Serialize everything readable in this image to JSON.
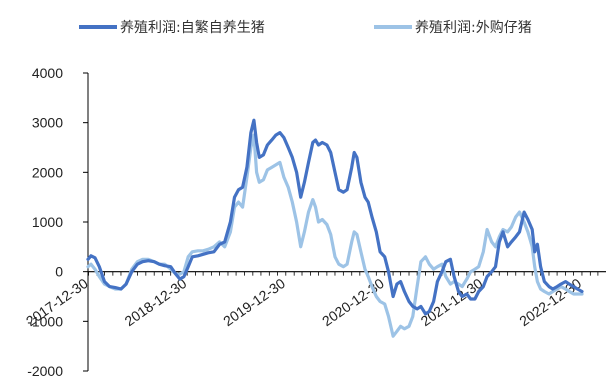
{
  "chart_data": {
    "type": "line",
    "title": "",
    "xlabel": "",
    "ylabel": "",
    "ylim": [
      -2000,
      4000
    ],
    "yticks": [
      -2000,
      -1000,
      0,
      1000,
      2000,
      3000,
      4000
    ],
    "ytick_labels": [
      "-2000",
      "-1000",
      "0",
      "1000",
      "2000",
      "3000",
      "4000"
    ],
    "xlim": [
      "2017-12-30",
      "2023-03-31"
    ],
    "xticks": [
      "2017-12-30",
      "2018-12-30",
      "2019-12-30",
      "2020-12-30",
      "2021-12-30",
      "2022-12-30"
    ],
    "xtick_labels": [
      "2017-12-30",
      "2018-12-30",
      "2019-12-30",
      "2020-12-30",
      "2021-12-30",
      "2022-12-30"
    ],
    "grid": false,
    "legend_position": "top",
    "series": [
      {
        "name": "养殖利润:自繁自养生猪",
        "color": "#4472C4",
        "points": [
          [
            "2017-12-30",
            250
          ],
          [
            "2018-01-10",
            320
          ],
          [
            "2018-01-25",
            280
          ],
          [
            "2018-02-10",
            100
          ],
          [
            "2018-03-01",
            -200
          ],
          [
            "2018-03-20",
            -300
          ],
          [
            "2018-04-10",
            -320
          ],
          [
            "2018-05-01",
            -350
          ],
          [
            "2018-05-20",
            -250
          ],
          [
            "2018-06-10",
            0
          ],
          [
            "2018-07-01",
            150
          ],
          [
            "2018-07-20",
            200
          ],
          [
            "2018-08-10",
            220
          ],
          [
            "2018-09-01",
            200
          ],
          [
            "2018-09-20",
            150
          ],
          [
            "2018-10-10",
            120
          ],
          [
            "2018-11-01",
            100
          ],
          [
            "2018-11-20",
            -50
          ],
          [
            "2018-12-05",
            -150
          ],
          [
            "2018-12-20",
            -100
          ],
          [
            "2019-01-05",
            100
          ],
          [
            "2019-01-20",
            300
          ],
          [
            "2019-02-10",
            320
          ],
          [
            "2019-03-01",
            350
          ],
          [
            "2019-03-20",
            380
          ],
          [
            "2019-04-10",
            400
          ],
          [
            "2019-05-01",
            550
          ],
          [
            "2019-05-20",
            600
          ],
          [
            "2019-06-10",
            1000
          ],
          [
            "2019-06-25",
            1500
          ],
          [
            "2019-07-10",
            1650
          ],
          [
            "2019-07-25",
            1700
          ],
          [
            "2019-08-10",
            2100
          ],
          [
            "2019-08-25",
            2800
          ],
          [
            "2019-09-05",
            3050
          ],
          [
            "2019-09-15",
            2600
          ],
          [
            "2019-09-25",
            2300
          ],
          [
            "2019-10-10",
            2350
          ],
          [
            "2019-10-25",
            2550
          ],
          [
            "2019-11-10",
            2650
          ],
          [
            "2019-11-25",
            2750
          ],
          [
            "2019-12-10",
            2800
          ],
          [
            "2019-12-25",
            2700
          ],
          [
            "2020-01-10",
            2500
          ],
          [
            "2020-01-25",
            2300
          ],
          [
            "2020-02-10",
            2000
          ],
          [
            "2020-02-25",
            1500
          ],
          [
            "2020-03-10",
            1800
          ],
          [
            "2020-03-25",
            2200
          ],
          [
            "2020-04-10",
            2600
          ],
          [
            "2020-04-20",
            2650
          ],
          [
            "2020-05-01",
            2550
          ],
          [
            "2020-05-15",
            2600
          ],
          [
            "2020-06-01",
            2550
          ],
          [
            "2020-06-15",
            2400
          ],
          [
            "2020-07-01",
            2000
          ],
          [
            "2020-07-15",
            1650
          ],
          [
            "2020-08-01",
            1600
          ],
          [
            "2020-08-15",
            1650
          ],
          [
            "2020-09-01",
            2100
          ],
          [
            "2020-09-10",
            2400
          ],
          [
            "2020-09-20",
            2300
          ],
          [
            "2020-10-05",
            1800
          ],
          [
            "2020-10-20",
            1500
          ],
          [
            "2020-11-01",
            1400
          ],
          [
            "2020-11-15",
            1100
          ],
          [
            "2020-12-01",
            800
          ],
          [
            "2020-12-15",
            400
          ],
          [
            "2021-01-01",
            300
          ],
          [
            "2021-01-15",
            0
          ],
          [
            "2021-02-01",
            -500
          ],
          [
            "2021-02-15",
            -250
          ],
          [
            "2021-03-01",
            -200
          ],
          [
            "2021-03-15",
            -400
          ],
          [
            "2021-04-01",
            -600
          ],
          [
            "2021-04-15",
            -700
          ],
          [
            "2021-05-01",
            -750
          ],
          [
            "2021-05-15",
            -700
          ],
          [
            "2021-06-01",
            -850
          ],
          [
            "2021-06-15",
            -800
          ],
          [
            "2021-07-01",
            -600
          ],
          [
            "2021-07-15",
            -200
          ],
          [
            "2021-08-01",
            0
          ],
          [
            "2021-08-15",
            200
          ],
          [
            "2021-09-01",
            250
          ],
          [
            "2021-09-15",
            -100
          ],
          [
            "2021-10-01",
            -400
          ],
          [
            "2021-10-15",
            -500
          ],
          [
            "2021-11-01",
            -450
          ],
          [
            "2021-11-15",
            -550
          ],
          [
            "2021-12-01",
            -550
          ],
          [
            "2021-12-15",
            -400
          ],
          [
            "2022-01-01",
            -300
          ],
          [
            "2022-01-15",
            -100
          ],
          [
            "2022-02-01",
            0
          ],
          [
            "2022-02-15",
            100
          ],
          [
            "2022-03-01",
            600
          ],
          [
            "2022-03-15",
            800
          ],
          [
            "2022-04-01",
            500
          ],
          [
            "2022-04-15",
            600
          ],
          [
            "2022-05-01",
            700
          ],
          [
            "2022-05-15",
            800
          ],
          [
            "2022-06-01",
            1200
          ],
          [
            "2022-06-15",
            1050
          ],
          [
            "2022-07-01",
            850
          ],
          [
            "2022-07-10",
            400
          ],
          [
            "2022-07-20",
            550
          ],
          [
            "2022-08-01",
            100
          ],
          [
            "2022-08-15",
            -200
          ],
          [
            "2022-09-01",
            -300
          ],
          [
            "2022-09-15",
            -350
          ],
          [
            "2022-10-01",
            -300
          ],
          [
            "2022-10-15",
            -250
          ],
          [
            "2022-11-01",
            -200
          ],
          [
            "2022-11-15",
            -250
          ],
          [
            "2022-12-01",
            -300
          ],
          [
            "2022-12-15",
            -350
          ],
          [
            "2023-01-01",
            -400
          ]
        ]
      },
      {
        "name": "养殖利润:外购仔猪",
        "color": "#9DC3E6",
        "points": [
          [
            "2017-12-30",
            100
          ],
          [
            "2018-01-10",
            150
          ],
          [
            "2018-01-25",
            50
          ],
          [
            "2018-02-10",
            -100
          ],
          [
            "2018-03-01",
            -250
          ],
          [
            "2018-03-20",
            -300
          ],
          [
            "2018-04-10",
            -350
          ],
          [
            "2018-05-01",
            -350
          ],
          [
            "2018-05-20",
            -250
          ],
          [
            "2018-06-10",
            50
          ],
          [
            "2018-07-01",
            200
          ],
          [
            "2018-07-20",
            250
          ],
          [
            "2018-08-10",
            250
          ],
          [
            "2018-09-01",
            200
          ],
          [
            "2018-09-20",
            150
          ],
          [
            "2018-10-10",
            150
          ],
          [
            "2018-11-01",
            50
          ],
          [
            "2018-11-20",
            -50
          ],
          [
            "2018-12-05",
            -50
          ],
          [
            "2018-12-20",
            0
          ],
          [
            "2019-01-05",
            300
          ],
          [
            "2019-01-20",
            400
          ],
          [
            "2019-02-10",
            420
          ],
          [
            "2019-03-01",
            420
          ],
          [
            "2019-03-20",
            450
          ],
          [
            "2019-04-10",
            500
          ],
          [
            "2019-05-01",
            600
          ],
          [
            "2019-05-20",
            500
          ],
          [
            "2019-06-10",
            800
          ],
          [
            "2019-06-25",
            1300
          ],
          [
            "2019-07-10",
            1400
          ],
          [
            "2019-07-25",
            1300
          ],
          [
            "2019-08-10",
            1900
          ],
          [
            "2019-08-25",
            2500
          ],
          [
            "2019-09-05",
            2750
          ],
          [
            "2019-09-15",
            2000
          ],
          [
            "2019-09-25",
            1800
          ],
          [
            "2019-10-10",
            1850
          ],
          [
            "2019-10-25",
            2050
          ],
          [
            "2019-11-10",
            2100
          ],
          [
            "2019-11-25",
            2150
          ],
          [
            "2019-12-10",
            2200
          ],
          [
            "2019-12-25",
            1900
          ],
          [
            "2020-01-10",
            1700
          ],
          [
            "2020-01-25",
            1400
          ],
          [
            "2020-02-10",
            1000
          ],
          [
            "2020-02-25",
            500
          ],
          [
            "2020-03-10",
            800
          ],
          [
            "2020-03-25",
            1200
          ],
          [
            "2020-04-10",
            1450
          ],
          [
            "2020-04-20",
            1300
          ],
          [
            "2020-05-01",
            1000
          ],
          [
            "2020-05-15",
            1050
          ],
          [
            "2020-06-01",
            950
          ],
          [
            "2020-06-15",
            750
          ],
          [
            "2020-07-01",
            300
          ],
          [
            "2020-07-15",
            150
          ],
          [
            "2020-08-01",
            100
          ],
          [
            "2020-08-15",
            150
          ],
          [
            "2020-09-01",
            600
          ],
          [
            "2020-09-10",
            800
          ],
          [
            "2020-09-20",
            750
          ],
          [
            "2020-10-05",
            400
          ],
          [
            "2020-10-20",
            50
          ],
          [
            "2020-11-01",
            -100
          ],
          [
            "2020-11-15",
            -300
          ],
          [
            "2020-12-01",
            -500
          ],
          [
            "2020-12-15",
            -600
          ],
          [
            "2021-01-01",
            -650
          ],
          [
            "2021-01-15",
            -900
          ],
          [
            "2021-02-01",
            -1300
          ],
          [
            "2021-02-15",
            -1200
          ],
          [
            "2021-03-01",
            -1100
          ],
          [
            "2021-03-15",
            -1150
          ],
          [
            "2021-04-01",
            -1100
          ],
          [
            "2021-04-15",
            -900
          ],
          [
            "2021-05-01",
            -300
          ],
          [
            "2021-05-15",
            200
          ],
          [
            "2021-06-01",
            300
          ],
          [
            "2021-06-15",
            150
          ],
          [
            "2021-07-01",
            50
          ],
          [
            "2021-07-15",
            100
          ],
          [
            "2021-08-01",
            150
          ],
          [
            "2021-08-15",
            -100
          ],
          [
            "2021-09-01",
            -250
          ],
          [
            "2021-09-15",
            -200
          ],
          [
            "2021-10-01",
            -250
          ],
          [
            "2021-10-15",
            -300
          ],
          [
            "2021-11-01",
            -150
          ],
          [
            "2021-11-15",
            0
          ],
          [
            "2021-12-01",
            50
          ],
          [
            "2021-12-15",
            100
          ],
          [
            "2022-01-01",
            400
          ],
          [
            "2022-01-15",
            850
          ],
          [
            "2022-02-01",
            600
          ],
          [
            "2022-02-15",
            500
          ],
          [
            "2022-03-01",
            700
          ],
          [
            "2022-03-15",
            850
          ],
          [
            "2022-04-01",
            800
          ],
          [
            "2022-04-15",
            900
          ],
          [
            "2022-05-01",
            1100
          ],
          [
            "2022-05-15",
            1200
          ],
          [
            "2022-06-01",
            1000
          ],
          [
            "2022-06-15",
            800
          ],
          [
            "2022-07-01",
            500
          ],
          [
            "2022-07-10",
            100
          ],
          [
            "2022-07-20",
            -200
          ],
          [
            "2022-08-01",
            -350
          ],
          [
            "2022-08-15",
            -400
          ],
          [
            "2022-09-01",
            -450
          ],
          [
            "2022-09-15",
            -400
          ],
          [
            "2022-10-01",
            -350
          ],
          [
            "2022-10-15",
            -300
          ],
          [
            "2022-11-01",
            -350
          ],
          [
            "2022-11-15",
            -400
          ],
          [
            "2022-12-01",
            -450
          ],
          [
            "2022-12-15",
            -450
          ],
          [
            "2023-01-01",
            -450
          ]
        ]
      }
    ]
  }
}
